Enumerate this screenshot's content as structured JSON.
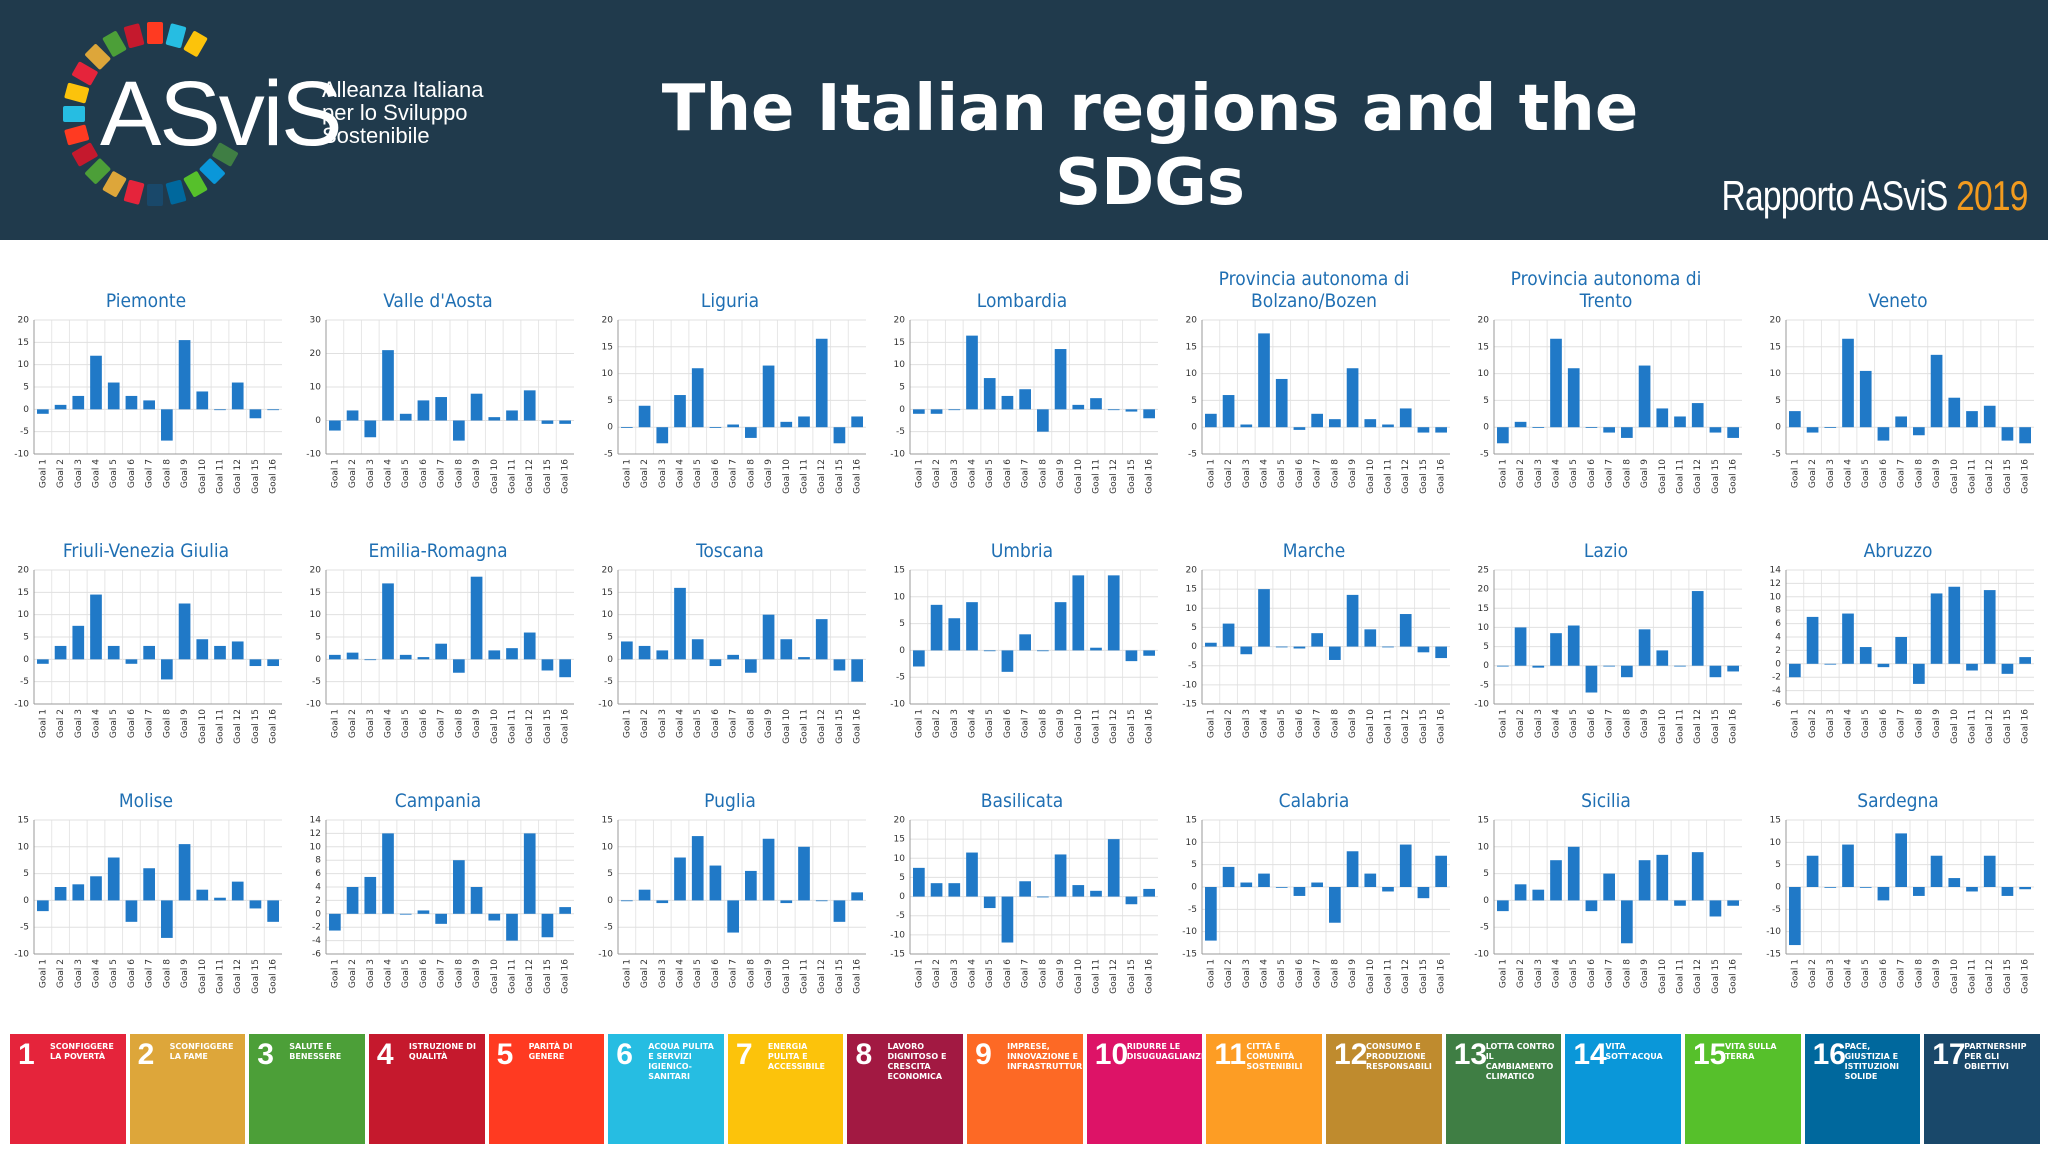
{
  "header": {
    "logo": "ASviS",
    "logo_lines": [
      "Alleanza Italiana",
      "per lo Sviluppo",
      "Sostenibile"
    ],
    "title": "The Italian regions and the  SDGs",
    "report": "Rapporto ASviS",
    "year": "2019"
  },
  "chart_data": [
    {
      "type": "bar",
      "title": "Piemonte",
      "color": "#2079c7",
      "grid": true,
      "ylim": [
        -10,
        20
      ],
      "yticks": [
        -10,
        -5,
        0,
        5,
        10,
        15,
        20
      ],
      "categories": [
        "Goal 1",
        "Goal 2",
        "Goal 3",
        "Goal 4",
        "Goal 5",
        "Goal 6",
        "Goal 7",
        "Goal 8",
        "Goal 9",
        "Goal 10",
        "Goal 11",
        "Goal 12",
        "Goal 15",
        "Goal 16"
      ],
      "values": [
        -1,
        1,
        3,
        12,
        6,
        3,
        2,
        -7,
        15.5,
        4,
        0,
        6,
        -2,
        0
      ]
    },
    {
      "type": "bar",
      "title": "Valle d'Aosta",
      "color": "#2079c7",
      "grid": true,
      "ylim": [
        -10,
        30
      ],
      "yticks": [
        -10,
        0,
        10,
        20,
        30
      ],
      "categories": [
        "Goal 1",
        "Goal 2",
        "Goal 3",
        "Goal 4",
        "Goal 5",
        "Goal 6",
        "Goal 7",
        "Goal 8",
        "Goal 9",
        "Goal 10",
        "Goal 11",
        "Goal 12",
        "Goal 15",
        "Goal 16"
      ],
      "values": [
        -3,
        3,
        -5,
        21,
        2,
        6,
        7,
        -6,
        8,
        1,
        3,
        9,
        -1,
        -1
      ]
    },
    {
      "type": "bar",
      "title": "Liguria",
      "color": "#2079c7",
      "grid": true,
      "ylim": [
        -5,
        20
      ],
      "yticks": [
        -5,
        0,
        5,
        10,
        15,
        20
      ],
      "categories": [
        "Goal 1",
        "Goal 2",
        "Goal 3",
        "Goal 4",
        "Goal 5",
        "Goal 6",
        "Goal 7",
        "Goal 8",
        "Goal 9",
        "Goal 10",
        "Goal 11",
        "Goal 12",
        "Goal 15",
        "Goal 16"
      ],
      "values": [
        0,
        4,
        -3,
        6,
        11,
        0,
        0.5,
        -2,
        11.5,
        1,
        2,
        16.5,
        -3,
        2
      ]
    },
    {
      "type": "bar",
      "title": "Lombardia",
      "color": "#2079c7",
      "grid": true,
      "ylim": [
        -10,
        20
      ],
      "yticks": [
        -10,
        -5,
        0,
        5,
        10,
        15,
        20
      ],
      "categories": [
        "Goal 1",
        "Goal 2",
        "Goal 3",
        "Goal 4",
        "Goal 5",
        "Goal 6",
        "Goal 7",
        "Goal 8",
        "Goal 9",
        "Goal 10",
        "Goal 11",
        "Goal 12",
        "Goal 15",
        "Goal 16"
      ],
      "values": [
        -1,
        -1,
        0,
        16.5,
        7,
        3,
        4.5,
        -5,
        13.5,
        1,
        2.5,
        0,
        -0.5,
        -2
      ]
    },
    {
      "type": "bar",
      "title": "Provincia autonoma di Bolzano/Bozen",
      "color": "#2079c7",
      "grid": true,
      "ylim": [
        -5,
        20
      ],
      "yticks": [
        -5,
        0,
        5,
        10,
        15,
        20
      ],
      "categories": [
        "Goal 1",
        "Goal 2",
        "Goal 3",
        "Goal 4",
        "Goal 5",
        "Goal 6",
        "Goal 7",
        "Goal 8",
        "Goal 9",
        "Goal 10",
        "Goal 11",
        "Goal 12",
        "Goal 15",
        "Goal 16"
      ],
      "values": [
        2.5,
        6,
        0.5,
        17.5,
        9,
        -0.5,
        2.5,
        1.5,
        11,
        1.5,
        0.5,
        3.5,
        -1,
        -1
      ]
    },
    {
      "type": "bar",
      "title": "Provincia autonoma di Trento",
      "color": "#2079c7",
      "grid": true,
      "ylim": [
        -5,
        20
      ],
      "yticks": [
        -5,
        0,
        5,
        10,
        15,
        20
      ],
      "categories": [
        "Goal 1",
        "Goal 2",
        "Goal 3",
        "Goal 4",
        "Goal 5",
        "Goal 6",
        "Goal 7",
        "Goal 8",
        "Goal 9",
        "Goal 10",
        "Goal 11",
        "Goal 12",
        "Goal 15",
        "Goal 16"
      ],
      "values": [
        -3,
        1,
        0,
        16.5,
        11,
        0,
        -1,
        -2,
        11.5,
        3.5,
        2,
        4.5,
        -1,
        -2
      ]
    },
    {
      "type": "bar",
      "title": "Veneto",
      "color": "#2079c7",
      "grid": true,
      "ylim": [
        -5,
        20
      ],
      "yticks": [
        -5,
        0,
        5,
        10,
        15,
        20
      ],
      "categories": [
        "Goal 1",
        "Goal 2",
        "Goal 3",
        "Goal 4",
        "Goal 5",
        "Goal 6",
        "Goal 7",
        "Goal 8",
        "Goal 9",
        "Goal 10",
        "Goal 11",
        "Goal 12",
        "Goal 15",
        "Goal 16"
      ],
      "values": [
        3,
        -1,
        0,
        16.5,
        10.5,
        -2.5,
        2,
        -1.5,
        13.5,
        5.5,
        3,
        4,
        -2.5,
        -3
      ]
    },
    {
      "type": "bar",
      "title": "Friuli-Venezia Giulia",
      "color": "#2079c7",
      "grid": true,
      "ylim": [
        -10,
        20
      ],
      "yticks": [
        -10,
        -5,
        0,
        5,
        10,
        15,
        20
      ],
      "categories": [
        "Goal 1",
        "Goal 2",
        "Goal 3",
        "Goal 4",
        "Goal 5",
        "Goal 6",
        "Goal 7",
        "Goal 8",
        "Goal 9",
        "Goal 10",
        "Goal 11",
        "Goal 12",
        "Goal 15",
        "Goal 16"
      ],
      "values": [
        -1,
        3,
        7.5,
        14.5,
        3,
        -1,
        3,
        -4.5,
        12.5,
        4.5,
        3,
        4,
        -1.5,
        -1.5
      ]
    },
    {
      "type": "bar",
      "title": "Emilia-Romagna",
      "color": "#2079c7",
      "grid": true,
      "ylim": [
        -10,
        20
      ],
      "yticks": [
        -10,
        -5,
        0,
        5,
        10,
        15,
        20
      ],
      "categories": [
        "Goal 1",
        "Goal 2",
        "Goal 3",
        "Goal 4",
        "Goal 5",
        "Goal 6",
        "Goal 7",
        "Goal 8",
        "Goal 9",
        "Goal 10",
        "Goal 11",
        "Goal 12",
        "Goal 15",
        "Goal 16"
      ],
      "values": [
        1,
        1.5,
        0,
        17,
        1,
        0.5,
        3.5,
        -3,
        18.5,
        2,
        2.5,
        6,
        -2.5,
        -4
      ]
    },
    {
      "type": "bar",
      "title": "Toscana",
      "color": "#2079c7",
      "grid": true,
      "ylim": [
        -10,
        20
      ],
      "yticks": [
        -10,
        -5,
        0,
        5,
        10,
        15,
        20
      ],
      "categories": [
        "Goal 1",
        "Goal 2",
        "Goal 3",
        "Goal 4",
        "Goal 5",
        "Goal 6",
        "Goal 7",
        "Goal 8",
        "Goal 9",
        "Goal 10",
        "Goal 11",
        "Goal 12",
        "Goal 15",
        "Goal 16"
      ],
      "values": [
        4,
        3,
        2,
        16,
        4.5,
        -1.5,
        1,
        -3,
        10,
        4.5,
        0.5,
        9,
        -2.5,
        -5
      ]
    },
    {
      "type": "bar",
      "title": "Umbria",
      "color": "#2079c7",
      "grid": true,
      "ylim": [
        -10,
        15
      ],
      "yticks": [
        -10,
        -5,
        0,
        5,
        10,
        15
      ],
      "categories": [
        "Goal 1",
        "Goal 2",
        "Goal 3",
        "Goal 4",
        "Goal 5",
        "Goal 6",
        "Goal 7",
        "Goal 8",
        "Goal 9",
        "Goal 10",
        "Goal 11",
        "Goal 12",
        "Goal 15",
        "Goal 16"
      ],
      "values": [
        -3,
        8.5,
        6,
        9,
        0,
        -4,
        3,
        0,
        9,
        14,
        0.5,
        14,
        -2,
        -1
      ]
    },
    {
      "type": "bar",
      "title": "Marche",
      "color": "#2079c7",
      "grid": true,
      "ylim": [
        -15,
        20
      ],
      "yticks": [
        -15,
        -10,
        -5,
        0,
        5,
        10,
        15,
        20
      ],
      "categories": [
        "Goal 1",
        "Goal 2",
        "Goal 3",
        "Goal 4",
        "Goal 5",
        "Goal 6",
        "Goal 7",
        "Goal 8",
        "Goal 9",
        "Goal 10",
        "Goal 11",
        "Goal 12",
        "Goal 15",
        "Goal 16"
      ],
      "values": [
        1,
        6,
        -2,
        15,
        0,
        -0.5,
        3.5,
        -3.5,
        13.5,
        4.5,
        0,
        8.5,
        -1.5,
        -3
      ]
    },
    {
      "type": "bar",
      "title": "Lazio",
      "color": "#2079c7",
      "grid": true,
      "ylim": [
        -10,
        25
      ],
      "yticks": [
        -10,
        -5,
        0,
        5,
        10,
        15,
        20,
        25
      ],
      "categories": [
        "Goal 1",
        "Goal 2",
        "Goal 3",
        "Goal 4",
        "Goal 5",
        "Goal 6",
        "Goal 7",
        "Goal 8",
        "Goal 9",
        "Goal 10",
        "Goal 11",
        "Goal 12",
        "Goal 15",
        "Goal 16"
      ],
      "values": [
        0,
        10,
        -0.5,
        8.5,
        10.5,
        -7,
        0,
        -3,
        9.5,
        4,
        0,
        19.5,
        -3,
        -1.5
      ]
    },
    {
      "type": "bar",
      "title": "Abruzzo",
      "color": "#2079c7",
      "grid": true,
      "ylim": [
        -6,
        14
      ],
      "yticks": [
        -6,
        -4,
        -2,
        0,
        2,
        4,
        6,
        8,
        10,
        12,
        14
      ],
      "categories": [
        "Goal 1",
        "Goal 2",
        "Goal 3",
        "Goal 4",
        "Goal 5",
        "Goal 6",
        "Goal 7",
        "Goal 8",
        "Goal 9",
        "Goal 10",
        "Goal 11",
        "Goal 12",
        "Goal 15",
        "Goal 16"
      ],
      "values": [
        -2,
        7,
        0,
        7.5,
        2.5,
        -0.5,
        4,
        -3,
        10.5,
        11.5,
        -1,
        11,
        -1.5,
        1
      ]
    },
    {
      "type": "bar",
      "title": "Molise",
      "color": "#2079c7",
      "grid": true,
      "ylim": [
        -10,
        15
      ],
      "yticks": [
        -10,
        -5,
        0,
        5,
        10,
        15
      ],
      "categories": [
        "Goal 1",
        "Goal 2",
        "Goal 3",
        "Goal 4",
        "Goal 5",
        "Goal 6",
        "Goal 7",
        "Goal 8",
        "Goal 9",
        "Goal 10",
        "Goal 11",
        "Goal 12",
        "Goal 15",
        "Goal 16"
      ],
      "values": [
        -2,
        2.5,
        3,
        4.5,
        8,
        -4,
        6,
        -7,
        10.5,
        2,
        0.5,
        3.5,
        -1.5,
        -4
      ]
    },
    {
      "type": "bar",
      "title": "Campania",
      "color": "#2079c7",
      "grid": true,
      "ylim": [
        -6,
        14
      ],
      "yticks": [
        -6,
        -4,
        -2,
        0,
        2,
        4,
        6,
        8,
        10,
        12,
        14
      ],
      "categories": [
        "Goal 1",
        "Goal 2",
        "Goal 3",
        "Goal 4",
        "Goal 5",
        "Goal 6",
        "Goal 7",
        "Goal 8",
        "Goal 9",
        "Goal 10",
        "Goal 11",
        "Goal 12",
        "Goal 15",
        "Goal 16"
      ],
      "values": [
        -2.5,
        4,
        5.5,
        12,
        0,
        0.5,
        -1.5,
        8,
        4,
        -1,
        -4,
        12,
        -3.5,
        1
      ]
    },
    {
      "type": "bar",
      "title": "Puglia",
      "color": "#2079c7",
      "grid": true,
      "ylim": [
        -10,
        15
      ],
      "yticks": [
        -10,
        -5,
        0,
        5,
        10,
        15
      ],
      "categories": [
        "Goal 1",
        "Goal 2",
        "Goal 3",
        "Goal 4",
        "Goal 5",
        "Goal 6",
        "Goal 7",
        "Goal 8",
        "Goal 9",
        "Goal 10",
        "Goal 11",
        "Goal 12",
        "Goal 15",
        "Goal 16"
      ],
      "values": [
        0,
        2,
        -0.5,
        8,
        12,
        6.5,
        -6,
        5.5,
        11.5,
        -0.5,
        10,
        0,
        -4,
        1.5
      ]
    },
    {
      "type": "bar",
      "title": "Basilicata",
      "color": "#2079c7",
      "grid": true,
      "ylim": [
        -15,
        20
      ],
      "yticks": [
        -15,
        -10,
        -5,
        0,
        5,
        10,
        15,
        20
      ],
      "categories": [
        "Goal 1",
        "Goal 2",
        "Goal 3",
        "Goal 4",
        "Goal 5",
        "Goal 6",
        "Goal 7",
        "Goal 8",
        "Goal 9",
        "Goal 10",
        "Goal 11",
        "Goal 12",
        "Goal 15",
        "Goal 16"
      ],
      "values": [
        7.5,
        3.5,
        3.5,
        11.5,
        -3,
        -12,
        4,
        0,
        11,
        3,
        1.5,
        15,
        -2,
        2
      ]
    },
    {
      "type": "bar",
      "title": "Calabria",
      "color": "#2079c7",
      "grid": true,
      "ylim": [
        -15,
        15
      ],
      "yticks": [
        -15,
        -10,
        -5,
        0,
        5,
        10,
        15
      ],
      "categories": [
        "Goal 1",
        "Goal 2",
        "Goal 3",
        "Goal 4",
        "Goal 5",
        "Goal 6",
        "Goal 7",
        "Goal 8",
        "Goal 9",
        "Goal 10",
        "Goal 11",
        "Goal 12",
        "Goal 15",
        "Goal 16"
      ],
      "values": [
        -12,
        4.5,
        1,
        3,
        0,
        -2,
        1,
        -8,
        8,
        3,
        -1,
        9.5,
        -2.5,
        7
      ]
    },
    {
      "type": "bar",
      "title": "Sicilia",
      "color": "#2079c7",
      "grid": true,
      "ylim": [
        -10,
        15
      ],
      "yticks": [
        -10,
        -5,
        0,
        5,
        10,
        15
      ],
      "categories": [
        "Goal 1",
        "Goal 2",
        "Goal 3",
        "Goal 4",
        "Goal 5",
        "Goal 6",
        "Goal 7",
        "Goal 8",
        "Goal 9",
        "Goal 10",
        "Goal 11",
        "Goal 12",
        "Goal 15",
        "Goal 16"
      ],
      "values": [
        -2,
        3,
        2,
        7.5,
        10,
        -2,
        5,
        -8,
        7.5,
        8.5,
        -1,
        9,
        -3,
        -1
      ]
    },
    {
      "type": "bar",
      "title": "Sardegna",
      "color": "#2079c7",
      "grid": true,
      "ylim": [
        -15,
        15
      ],
      "yticks": [
        -15,
        -10,
        -5,
        0,
        5,
        10,
        15
      ],
      "categories": [
        "Goal 1",
        "Goal 2",
        "Goal 3",
        "Goal 4",
        "Goal 5",
        "Goal 6",
        "Goal 7",
        "Goal 8",
        "Goal 9",
        "Goal 10",
        "Goal 11",
        "Goal 12",
        "Goal 15",
        "Goal 16"
      ],
      "values": [
        -13,
        7,
        0,
        9.5,
        0,
        -3,
        12,
        -2,
        7,
        2,
        -1,
        7,
        -2,
        -0.5
      ]
    }
  ],
  "sdgs": [
    {
      "number": "1",
      "label": "SCONFIGGERE LA POVERTÀ",
      "color": "#e5243b"
    },
    {
      "number": "2",
      "label": "SCONFIGGERE LA FAME",
      "color": "#dda63a"
    },
    {
      "number": "3",
      "label": "SALUTE E BENESSERE",
      "color": "#4c9f38"
    },
    {
      "number": "4",
      "label": "ISTRUZIONE DI QUALITÀ",
      "color": "#c5192d"
    },
    {
      "number": "5",
      "label": "PARITÀ DI GENERE",
      "color": "#ff3a21"
    },
    {
      "number": "6",
      "label": "ACQUA PULITA E SERVIZI IGIENICO-SANITARI",
      "color": "#26bde2"
    },
    {
      "number": "7",
      "label": "ENERGIA PULITA E ACCESSIBILE",
      "color": "#fcc30b"
    },
    {
      "number": "8",
      "label": "LAVORO DIGNITOSO E CRESCITA ECONOMICA",
      "color": "#a21942"
    },
    {
      "number": "9",
      "label": "IMPRESE, INNOVAZIONE E INFRASTRUTTURE",
      "color": "#fd6925"
    },
    {
      "number": "10",
      "label": "RIDURRE LE DISUGUAGLIANZE",
      "color": "#dd1367"
    },
    {
      "number": "11",
      "label": "CITTÀ E COMUNITÀ SOSTENIBILI",
      "color": "#fd9d24"
    },
    {
      "number": "12",
      "label": "CONSUMO E PRODUZIONE RESPONSABILI",
      "color": "#bf8b2e"
    },
    {
      "number": "13",
      "label": "LOTTA CONTRO IL CAMBIAMENTO CLIMATICO",
      "color": "#3f7e44"
    },
    {
      "number": "14",
      "label": "VITA SOTT'ACQUA",
      "color": "#0a97d9"
    },
    {
      "number": "15",
      "label": "VITA SULLA TERRA",
      "color": "#56c02b"
    },
    {
      "number": "16",
      "label": "PACE, GIUSTIZIA E ISTITUZIONI SOLIDE",
      "color": "#00689d"
    },
    {
      "number": "17",
      "label": "PARTNERSHIP PER GLI OBIETTIVI",
      "color": "#19486a"
    }
  ]
}
